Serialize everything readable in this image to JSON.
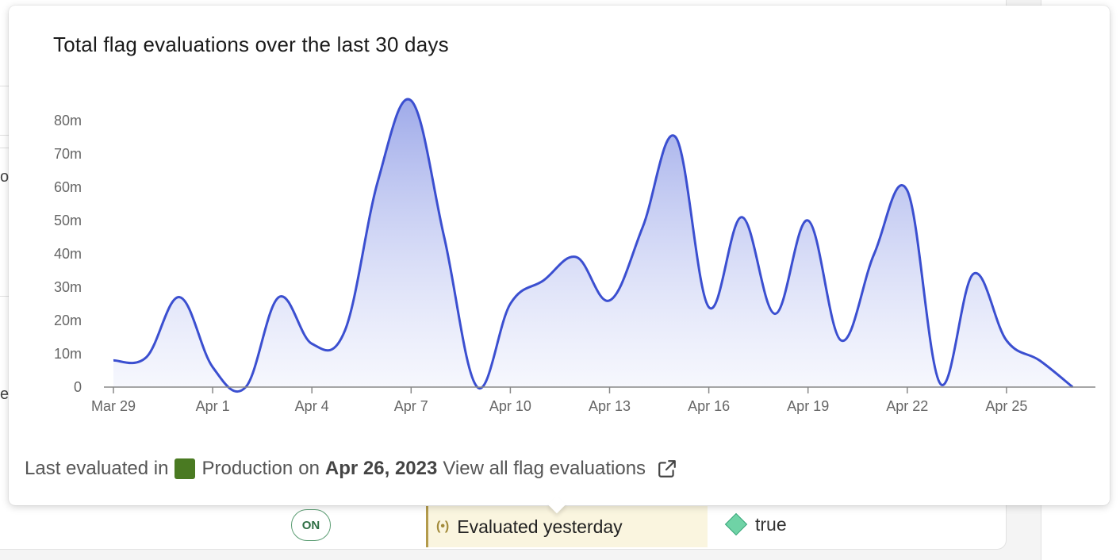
{
  "background": {
    "left_fragments": [
      "o",
      "e"
    ],
    "status_pill": "ON",
    "evaluation_status": "Evaluated yesterday",
    "variation": "true"
  },
  "popover": {
    "title": "Total flag evaluations over the last 30 days",
    "footer": {
      "prefix": "Last evaluated in",
      "environment": "Production",
      "on": "on",
      "date": "Apr 26, 2023",
      "link": "View all flag evaluations"
    },
    "colors": {
      "line": "#3b4fd0",
      "fill_top": "#9aa6e8",
      "environment": "#4a7a22"
    }
  },
  "chart_data": {
    "type": "area",
    "title": "Total flag evaluations over the last 30 days",
    "xlabel": "",
    "ylabel": "",
    "x_tick_labels": [
      "Mar 29",
      "Apr 1",
      "Apr 4",
      "Apr 7",
      "Apr 10",
      "Apr 13",
      "Apr 16",
      "Apr 19",
      "Apr 22",
      "Apr 25"
    ],
    "y_tick_labels": [
      "0",
      "10m",
      "20m",
      "30m",
      "40m",
      "50m",
      "60m",
      "70m",
      "80m"
    ],
    "y_ticks": [
      0,
      10,
      20,
      30,
      40,
      50,
      60,
      70,
      80
    ],
    "ylim": [
      0,
      86
    ],
    "unit": "millions",
    "grid": false,
    "series": [
      {
        "x": [
          "2023-03-29",
          "2023-03-30",
          "2023-03-31",
          "2023-04-01",
          "2023-04-02",
          "2023-04-03",
          "2023-04-04",
          "2023-04-05",
          "2023-04-06",
          "2023-04-07",
          "2023-04-08",
          "2023-04-09",
          "2023-04-10",
          "2023-04-11",
          "2023-04-12",
          "2023-04-13",
          "2023-04-14",
          "2023-04-15",
          "2023-04-16",
          "2023-04-17",
          "2023-04-18",
          "2023-04-19",
          "2023-04-20",
          "2023-04-21",
          "2023-04-22",
          "2023-04-23",
          "2023-04-24",
          "2023-04-25",
          "2023-04-26",
          "2023-04-27"
        ],
        "values": [
          8,
          9,
          27,
          6,
          0,
          27,
          13,
          17,
          62,
          86,
          45,
          0,
          25,
          32,
          39,
          26,
          48,
          75,
          24,
          51,
          22,
          50,
          14,
          40,
          59,
          1,
          34,
          14,
          8,
          0
        ]
      }
    ]
  }
}
